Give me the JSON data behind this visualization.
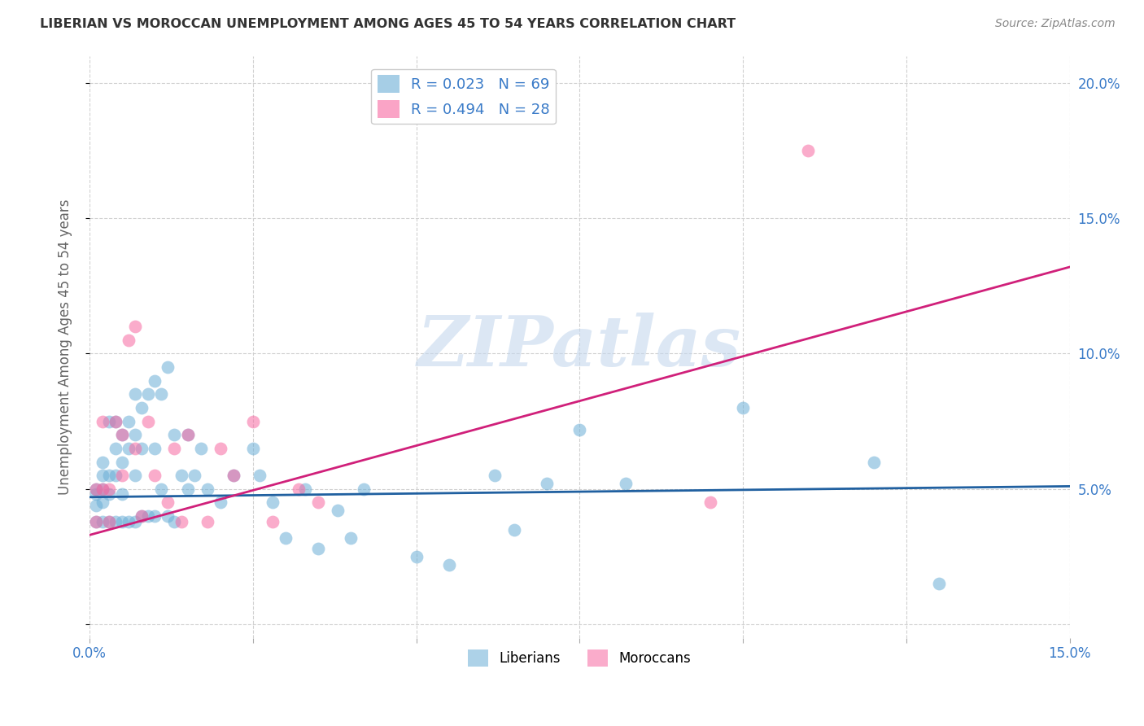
{
  "title": "LIBERIAN VS MOROCCAN UNEMPLOYMENT AMONG AGES 45 TO 54 YEARS CORRELATION CHART",
  "source": "Source: ZipAtlas.com",
  "ylabel": "Unemployment Among Ages 45 to 54 years",
  "xlim": [
    0.0,
    0.15
  ],
  "ylim": [
    -0.005,
    0.21
  ],
  "xticks": [
    0.0,
    0.025,
    0.05,
    0.075,
    0.1,
    0.125,
    0.15
  ],
  "xtick_labels": [
    "0.0%",
    "",
    "",
    "",
    "",
    "",
    "15.0%"
  ],
  "yticks": [
    0.0,
    0.05,
    0.1,
    0.15,
    0.2
  ],
  "ytick_right_labels": [
    "",
    "5.0%",
    "10.0%",
    "15.0%",
    "20.0%"
  ],
  "liberian_color": "#6baed6",
  "moroccan_color": "#f768a1",
  "liberian_R": 0.023,
  "liberian_N": 69,
  "moroccan_R": 0.494,
  "moroccan_N": 28,
  "liberian_line_x": [
    0.0,
    0.15
  ],
  "liberian_line_y": [
    0.047,
    0.051
  ],
  "moroccan_line_x": [
    0.0,
    0.15
  ],
  "moroccan_line_y": [
    0.033,
    0.132
  ],
  "liberian_x": [
    0.001,
    0.001,
    0.001,
    0.001,
    0.002,
    0.002,
    0.002,
    0.002,
    0.002,
    0.003,
    0.003,
    0.003,
    0.003,
    0.004,
    0.004,
    0.004,
    0.004,
    0.005,
    0.005,
    0.005,
    0.005,
    0.006,
    0.006,
    0.006,
    0.007,
    0.007,
    0.007,
    0.007,
    0.008,
    0.008,
    0.008,
    0.009,
    0.009,
    0.01,
    0.01,
    0.01,
    0.011,
    0.011,
    0.012,
    0.012,
    0.013,
    0.013,
    0.014,
    0.015,
    0.015,
    0.016,
    0.017,
    0.018,
    0.02,
    0.022,
    0.025,
    0.026,
    0.028,
    0.03,
    0.033,
    0.035,
    0.038,
    0.04,
    0.042,
    0.05,
    0.055,
    0.062,
    0.065,
    0.07,
    0.075,
    0.082,
    0.1,
    0.12,
    0.13
  ],
  "liberian_y": [
    0.05,
    0.048,
    0.044,
    0.038,
    0.06,
    0.055,
    0.05,
    0.045,
    0.038,
    0.075,
    0.055,
    0.048,
    0.038,
    0.075,
    0.065,
    0.055,
    0.038,
    0.07,
    0.06,
    0.048,
    0.038,
    0.075,
    0.065,
    0.038,
    0.085,
    0.07,
    0.055,
    0.038,
    0.08,
    0.065,
    0.04,
    0.085,
    0.04,
    0.09,
    0.065,
    0.04,
    0.085,
    0.05,
    0.095,
    0.04,
    0.07,
    0.038,
    0.055,
    0.07,
    0.05,
    0.055,
    0.065,
    0.05,
    0.045,
    0.055,
    0.065,
    0.055,
    0.045,
    0.032,
    0.05,
    0.028,
    0.042,
    0.032,
    0.05,
    0.025,
    0.022,
    0.055,
    0.035,
    0.052,
    0.072,
    0.052,
    0.08,
    0.06,
    0.015
  ],
  "moroccan_x": [
    0.001,
    0.001,
    0.002,
    0.002,
    0.003,
    0.003,
    0.004,
    0.005,
    0.005,
    0.006,
    0.007,
    0.007,
    0.008,
    0.009,
    0.01,
    0.012,
    0.013,
    0.014,
    0.015,
    0.018,
    0.02,
    0.022,
    0.025,
    0.028,
    0.032,
    0.035,
    0.095,
    0.11
  ],
  "moroccan_y": [
    0.05,
    0.038,
    0.075,
    0.05,
    0.05,
    0.038,
    0.075,
    0.07,
    0.055,
    0.105,
    0.11,
    0.065,
    0.04,
    0.075,
    0.055,
    0.045,
    0.065,
    0.038,
    0.07,
    0.038,
    0.065,
    0.055,
    0.075,
    0.038,
    0.05,
    0.045,
    0.045,
    0.175
  ],
  "watermark_text": "ZIPatlas",
  "background_color": "#ffffff",
  "grid_color": "#d0d0d0",
  "title_color": "#333333",
  "source_color": "#888888",
  "tick_color": "#3a7bc8",
  "ylabel_color": "#666666",
  "line_liberian_color": "#2060a0",
  "line_moroccan_color": "#d0207a",
  "watermark_color": "#c5d8ee"
}
